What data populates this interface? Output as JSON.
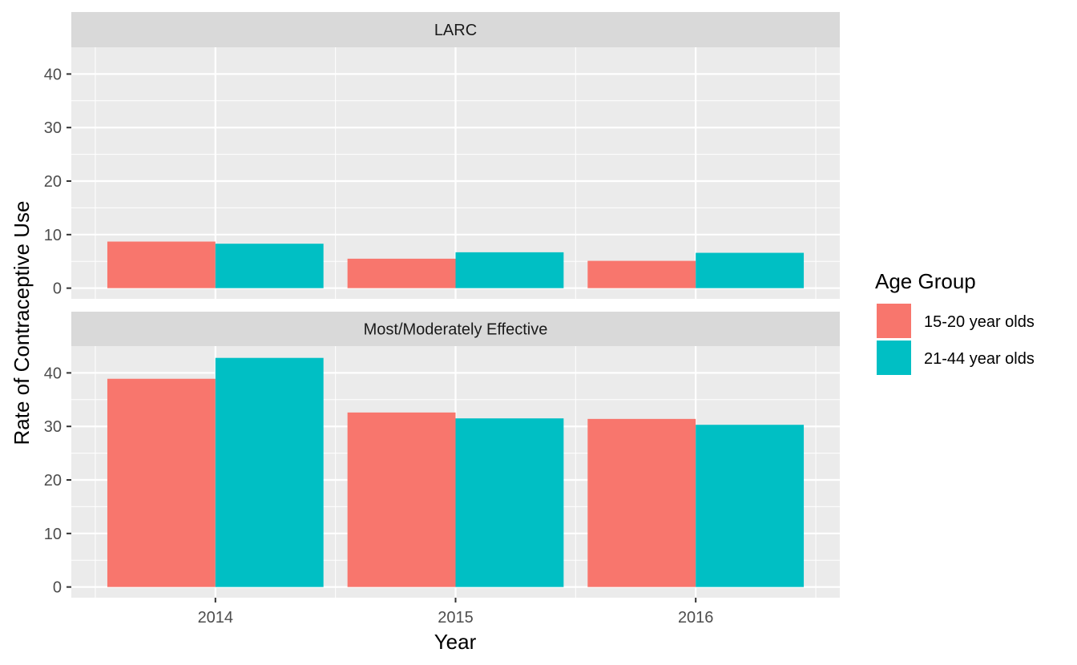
{
  "chart_data": {
    "type": "bar",
    "xlabel": "Year",
    "ylabel": "Rate of Contraceptive Use",
    "categories": [
      "2014",
      "2015",
      "2016"
    ],
    "ylim": [
      -2,
      45
    ],
    "yticks": [
      0,
      10,
      20,
      30,
      40
    ],
    "grid": true,
    "legend": {
      "title": "Age Group",
      "position": "right",
      "entries": [
        "15-20 year olds",
        "21-44 year olds"
      ]
    },
    "colors": {
      "15-20 year olds": "#F8766D",
      "21-44 year olds": "#00BFC4"
    },
    "panels": [
      {
        "title": "LARC",
        "series": [
          {
            "name": "15-20 year olds",
            "values": [
              8.7,
              5.5,
              5.1
            ]
          },
          {
            "name": "21-44 year olds",
            "values": [
              8.3,
              6.7,
              6.6
            ]
          }
        ]
      },
      {
        "title": "Most/Moderately Effective",
        "series": [
          {
            "name": "15-20 year olds",
            "values": [
              38.9,
              32.6,
              31.4
            ]
          },
          {
            "name": "21-44 year olds",
            "values": [
              42.8,
              31.5,
              30.3
            ]
          }
        ]
      }
    ]
  }
}
